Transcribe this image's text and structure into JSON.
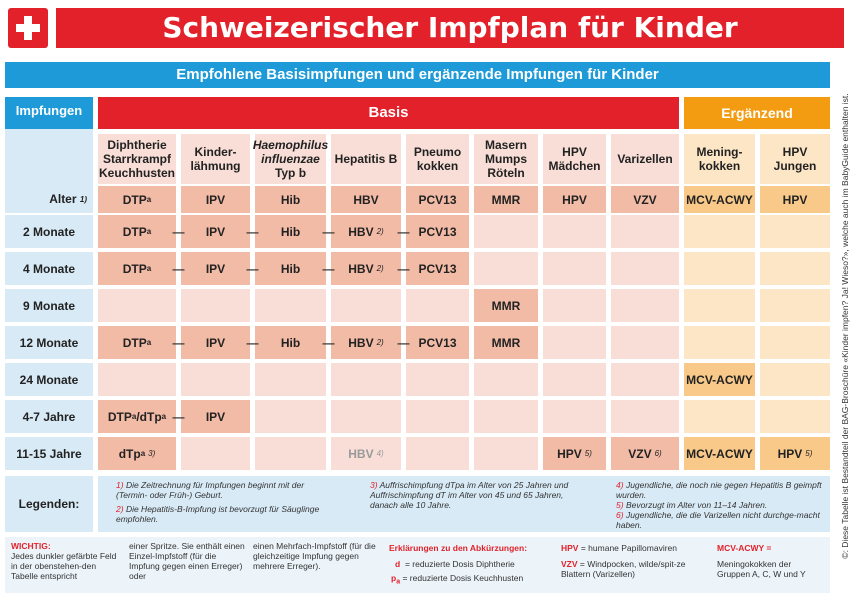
{
  "header": {
    "title": "Schweizerischer Impfplan für Kinder",
    "subtitle": "Empfohlene Basisimpfungen und ergänzende Impfungen für Kinder"
  },
  "side_note": "©: Diese Tabelle ist Bestandteil der BAG-Broschüre «Kinder impfen? Ja! Wieso?», welche auch im BabyGuide enthalten ist.",
  "groups": {
    "impfungen": "Impfungen",
    "basis": "Basis",
    "ergaenzend": "Ergänzend"
  },
  "vaccines": [
    {
      "name_lines": [
        "Diphtherie",
        "Starrkrampf",
        "Keuchhusten"
      ],
      "abbr": "DTP",
      "abbr_sub": "a"
    },
    {
      "name_lines": [
        "Kinder-",
        "lähmung"
      ],
      "abbr": "IPV"
    },
    {
      "name_lines": [
        "Haemophilus",
        "influenzae",
        "Typ b"
      ],
      "abbr": "Hib"
    },
    {
      "name_lines": [
        "Hepatitis B"
      ],
      "abbr": "HBV"
    },
    {
      "name_lines": [
        "Pneumo",
        "kokken"
      ],
      "abbr": "PCV13"
    },
    {
      "name_lines": [
        "Masern",
        "Mumps",
        "Röteln"
      ],
      "abbr": "MMR"
    },
    {
      "name_lines": [
        "HPV",
        "Mädchen"
      ],
      "abbr": "HPV"
    },
    {
      "name_lines": [
        "Varizellen"
      ],
      "abbr": "VZV"
    },
    {
      "name_lines": [
        "Mening-",
        "kokken"
      ],
      "abbr": "MCV-ACWY"
    },
    {
      "name_lines": [
        "HPV",
        "Jungen"
      ],
      "abbr": "HPV"
    }
  ],
  "age_label": "Alter",
  "age_label_fn": "1)",
  "dash": "—",
  "rows": [
    {
      "label": "2 Monate",
      "dtp": "DTP",
      "dtp_sub": "a",
      "ipv": "IPV",
      "hib": "Hib",
      "hbv": "HBV",
      "hbv_fn": "2)",
      "pcv": "PCV13"
    },
    {
      "label": "4 Monate",
      "dtp": "DTP",
      "dtp_sub": "a",
      "ipv": "IPV",
      "hib": "Hib",
      "hbv": "HBV",
      "hbv_fn": "2)",
      "pcv": "PCV13"
    },
    {
      "label": "9 Monate",
      "mmr": "MMR"
    },
    {
      "label": "12 Monate",
      "dtp": "DTP",
      "dtp_sub": "a",
      "ipv": "IPV",
      "hib": "Hib",
      "hbv": "HBV",
      "hbv_fn": "2)",
      "pcv": "PCV13",
      "mmr": "MMR"
    },
    {
      "label": "24 Monate",
      "mcv": "MCV-ACWY"
    },
    {
      "label": "4-7 Jahre",
      "dtp": "DTP",
      "dtp_sub": "a",
      "dtp_alt": "/dTp",
      "dtp_alt_sub": "a",
      "ipv": "IPV"
    },
    {
      "label": "11-15 Jahre",
      "dtp": "dTp",
      "dtp_sub": "a",
      "dtp_fn": "3)",
      "hbv": "HBV",
      "hbv_fn": "4)",
      "hpv_m": "HPV",
      "hpv_m_fn": "5)",
      "vzv": "VZV",
      "vzv_fn": "6)",
      "mcv": "MCV-ACWY",
      "hpv_j": "HPV",
      "hpv_j_fn": "5)"
    }
  ],
  "legend": {
    "label": "Legenden:",
    "fn1_n": "1)",
    "fn1": "Die Zeitrechnung für Impfungen beginnt mit der (Termin- oder Früh-) Geburt.",
    "fn2_n": "2)",
    "fn2": "Die Hepatitis-B-Impfung ist bevorzugt für Säuglinge empfohlen.",
    "fn3_n": "3)",
    "fn3": "Auffrischimpfung dTpa im Alter von 25 Jahren und Auffrischimpfung dT im Alter von 45 und 65 Jahren, danach alle 10 Jahre.",
    "fn4_n": "4)",
    "fn4": "Jugendliche, die noch nie gegen Hepatitis B geimpft wurden.",
    "fn5_n": "5)",
    "fn5": "Bevorzugt im Alter von 11–14 Jahren.",
    "fn6_n": "6)",
    "fn6": "Jugendliche, die die Varizellen nicht durchge-macht haben."
  },
  "bottom": {
    "wichtig_title": "WICHTIG:",
    "wichtig_1": "Jedes dunkler gefärbte Feld in der obenstehen-den Tabelle entspricht",
    "wichtig_2": "einer Spritze. Sie enthält einen Einzel-Impfstoff (für die Impfung gegen einen Erreger) oder",
    "wichtig_3": "einen Mehrfach-Impfstoff (für die gleichzeitige Impfung gegen mehrere Erreger).",
    "abbr_title": "Erklärungen zu den Abkürzungen:",
    "d_key": "d",
    "d_text": "= reduzierte Dosis Diphtherie",
    "pa_key": "p",
    "pa_sub": "a",
    "pa_text": "= reduzierte Dosis Keuchhusten",
    "hpv_key": "HPV",
    "hpv_text": "= humane Papillomaviren",
    "vzv_key": "VZV",
    "vzv_text": "= Windpocken, wilde/spit-ze Blattern (Varizellen)",
    "mcv_key": "MCV-ACWY =",
    "mcv_text": "Meningokokken der Gruppen A, C, W und Y"
  }
}
